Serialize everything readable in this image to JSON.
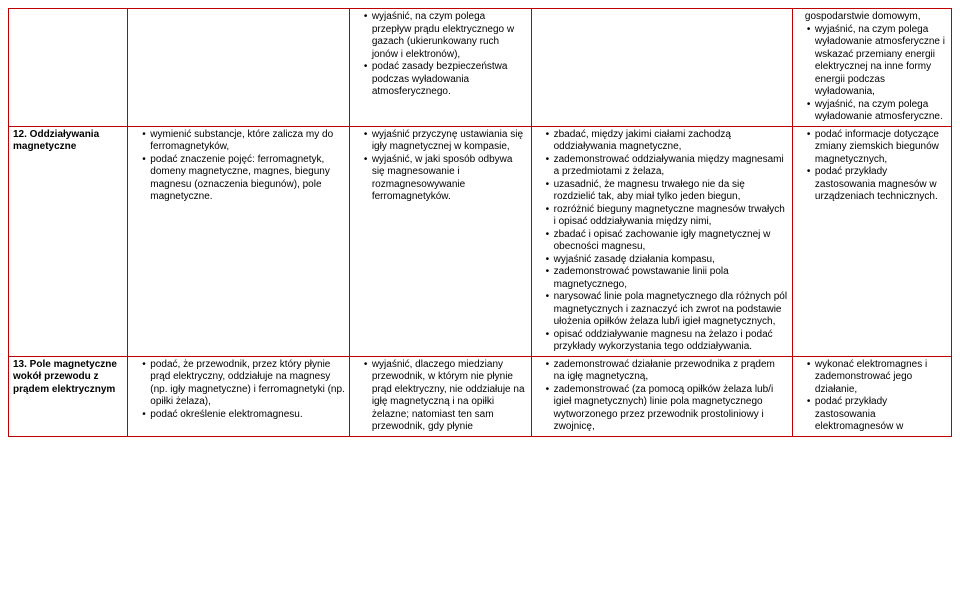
{
  "table": {
    "border_color": "#c00000",
    "font_size_pt": 10,
    "rows": [
      {
        "col1": "",
        "col2": "",
        "col3_items": [
          "wyjaśnić, na czym polega przepływ prądu elektrycznego w gazach (ukierunkowany ruch jonów i elektronów),",
          "podać zasady bezpieczeństwa podczas wyładowania atmosferycznego."
        ],
        "col4": "",
        "col5_prefix": "gospodarstwie domowym,",
        "col5_items": [
          "wyjaśnić, na czym polega wyładowanie atmosferyczne i wskazać przemiany energii elektrycznej na inne formy energii podczas wyładowania,",
          "wyjaśnić, na czym polega wyładowanie atmosferyczne."
        ]
      },
      {
        "col1": "12. Oddziaływania magnetyczne",
        "col2_items": [
          "wymienić substancje, które zalicza my do ferromagnetyków,",
          "podać znaczenie pojęć: ferromagnetyk, domeny magnetyczne, magnes, bieguny magnesu (oznaczenia biegunów), pole magnetyczne."
        ],
        "col3_items": [
          "wyjaśnić przyczynę ustawiania się igły magnetycznej w kompasie,",
          "wyjaśnić, w jaki sposób odbywa się magnesowanie i rozmagnesowywanie ferromagnetyków."
        ],
        "col4_items": [
          "zbadać, między jakimi ciałami zachodzą oddziaływania magnetyczne,",
          "zademonstrować oddziaływania między magnesami a przedmiotami z żelaza,",
          "uzasadnić, że magnesu trwałego nie da się rozdzielić tak, aby miał tylko jeden biegun,",
          "rozróżnić bieguny magnetyczne magnesów trwałych i opisać oddziaływania między nimi,",
          "zbadać i opisać zachowanie igły magnetycznej w obecności magnesu,",
          "wyjaśnić zasadę działania kompasu,",
          "zademonstrować powstawanie linii pola magnetycznego,",
          "narysować linie pola magnetycznego dla różnych pól magnetycznych i zaznaczyć ich zwrot na podstawie ułożenia opiłków żelaza lub/i igieł magnetycznych,",
          "opisać oddziaływanie magnesu na żelazo i podać przykłady wykorzystania tego oddziaływania."
        ],
        "col5_items": [
          "podać informacje dotyczące zmiany ziemskich biegunów magnetycznych,",
          "podać przykłady zastosowania magnesów w urządzeniach technicznych."
        ]
      },
      {
        "col1": "13. Pole magnetyczne wokół przewodu z prądem elektrycznym",
        "col2_items": [
          "podać, że przewodnik, przez który płynie prąd elektryczny, oddziałuje na magnesy (np. igły magnetyczne) i ferromagnetyki (np. opiłki żelaza),",
          "podać określenie elektromagnesu."
        ],
        "col3_items": [
          "wyjaśnić, dlaczego miedziany przewodnik, w którym nie płynie prąd elektryczny, nie oddziałuje na igłę magnetyczną i na opiłki żelazne; natomiast ten sam przewodnik, gdy płynie"
        ],
        "col4_items": [
          "zademonstrować działanie przewodnika z prądem na igłę magnetyczną,",
          "zademonstrować (za pomocą opiłków żelaza lub/i igieł magnetycznych) linie pola magnetycznego wytworzonego przez przewodnik prostoliniowy i zwojnicę,"
        ],
        "col5_items": [
          "wykonać elektromagnes i zademonstrować jego działanie,",
          "podać przykłady zastosowania elektromagnesów w"
        ]
      }
    ]
  }
}
